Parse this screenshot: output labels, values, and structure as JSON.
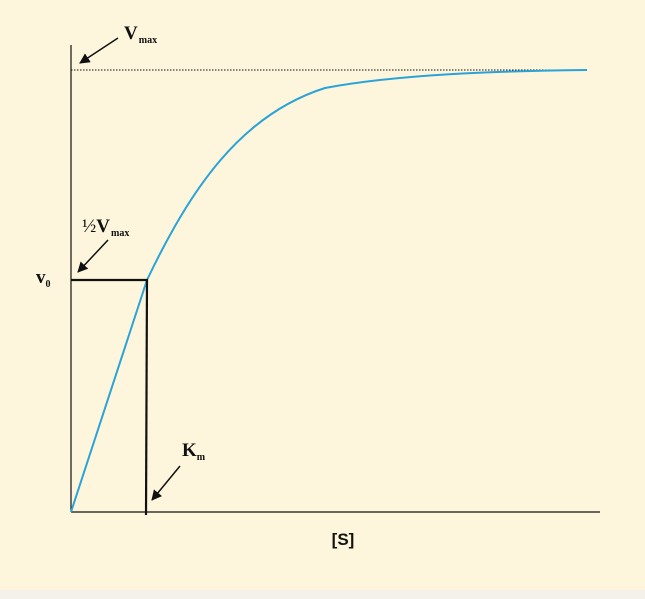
{
  "labels": {
    "vmax": {
      "main": "V",
      "sub": "max"
    },
    "half_vmax": {
      "fraction": "½",
      "main": "V",
      "sub": "max"
    },
    "v0": {
      "main": "v",
      "sub": "0"
    },
    "km": {
      "main": "K",
      "sub": "m"
    },
    "x_axis": "[S]"
  }
}
